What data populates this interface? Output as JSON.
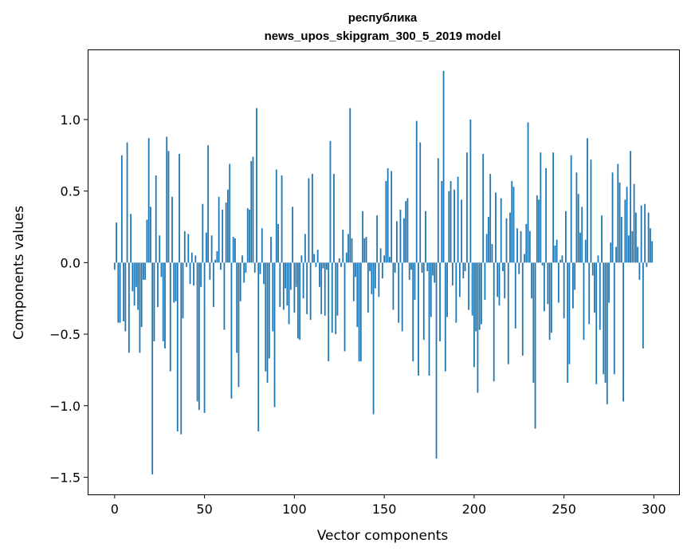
{
  "chart_data": {
    "type": "bar",
    "title_line1": "республика",
    "title_line2": "news_upos_skipgram_300_5_2019 model",
    "xlabel": "Vector components",
    "ylabel": "Components values",
    "xlim": [
      -15,
      314
    ],
    "ylim": [
      -1.62,
      1.49
    ],
    "xticks": [
      0,
      50,
      100,
      150,
      200,
      250,
      300
    ],
    "xtick_labels": [
      "0",
      "50",
      "100",
      "150",
      "200",
      "250",
      "300"
    ],
    "yticks": [
      1.0,
      0.5,
      0.0,
      -0.5,
      -1.0,
      -1.5
    ],
    "ytick_labels": [
      "1.0",
      "0.5",
      "0.0",
      "−0.5",
      "−1.0",
      "−1.5"
    ],
    "bar_color": "#1f77b4",
    "values": [
      -0.05,
      0.28,
      -0.42,
      -0.42,
      0.75,
      -0.41,
      -0.48,
      0.84,
      -0.63,
      0.34,
      -0.2,
      -0.3,
      -0.17,
      -0.33,
      -0.63,
      -0.45,
      -0.12,
      -0.12,
      0.3,
      0.87,
      0.39,
      -1.48,
      -0.55,
      0.61,
      -0.31,
      0.19,
      -0.1,
      -0.55,
      -0.6,
      0.88,
      0.78,
      -0.76,
      0.46,
      -0.28,
      -0.27,
      -1.18,
      0.76,
      -1.2,
      -0.39,
      0.22,
      -0.03,
      0.2,
      -0.15,
      0.07,
      -0.16,
      0.05,
      -0.97,
      -1.03,
      -0.17,
      0.41,
      -1.05,
      0.21,
      0.82,
      -0.12,
      0.19,
      -0.31,
      0.02,
      0.08,
      0.46,
      -0.05,
      0.37,
      -0.47,
      0.42,
      0.51,
      0.69,
      -0.95,
      0.18,
      0.17,
      -0.63,
      -0.87,
      -0.27,
      0.05,
      -0.14,
      -0.07,
      0.38,
      0.37,
      0.71,
      0.74,
      -0.07,
      1.08,
      -1.18,
      -0.08,
      0.24,
      -0.15,
      -0.76,
      -0.84,
      -0.67,
      0.18,
      -0.48,
      -1.01,
      0.65,
      0.27,
      -0.31,
      0.61,
      -0.33,
      -0.18,
      -0.3,
      -0.43,
      -0.19,
      0.39,
      -0.35,
      -0.17,
      -0.53,
      -0.54,
      0.05,
      -0.25,
      0.2,
      -0.36,
      0.59,
      -0.4,
      0.62,
      0.06,
      -0.03,
      0.09,
      -0.17,
      -0.36,
      -0.04,
      -0.37,
      -0.05,
      -0.69,
      0.85,
      -0.49,
      0.62,
      -0.5,
      -0.37,
      0.03,
      -0.03,
      0.23,
      -0.62,
      0.07,
      0.2,
      1.08,
      0.17,
      -0.27,
      -0.1,
      -0.45,
      -0.69,
      -0.69,
      0.36,
      0.17,
      0.18,
      -0.35,
      -0.06,
      -0.22,
      -1.06,
      -0.18,
      0.33,
      -0.24,
      0.1,
      -0.11,
      0.05,
      0.57,
      0.66,
      0.04,
      0.64,
      -0.33,
      -0.07,
      0.29,
      -0.42,
      0.37,
      -0.48,
      0.31,
      0.43,
      0.45,
      -0.12,
      -0.05,
      -0.69,
      -0.26,
      0.99,
      -0.79,
      0.84,
      -0.07,
      -0.54,
      0.36,
      -0.06,
      -0.79,
      -0.38,
      -0.09,
      -0.14,
      -1.37,
      0.73,
      -0.55,
      0.57,
      1.34,
      -0.76,
      -0.38,
      0.5,
      0.57,
      -0.16,
      0.51,
      -0.42,
      0.6,
      -0.24,
      0.44,
      -0.11,
      -0.06,
      0.77,
      -0.33,
      1.0,
      -0.37,
      -0.73,
      -0.48,
      -0.91,
      -0.47,
      -0.43,
      0.76,
      -0.26,
      0.2,
      0.32,
      0.62,
      0.13,
      -0.83,
      0.49,
      -0.24,
      -0.3,
      0.45,
      -0.06,
      -0.25,
      0.31,
      -0.71,
      0.35,
      0.57,
      0.53,
      -0.46,
      0.24,
      -0.08,
      0.22,
      -0.65,
      0.06,
      0.27,
      0.98,
      0.22,
      -0.25,
      -0.84,
      -1.16,
      0.47,
      0.44,
      0.77,
      -0.02,
      -0.34,
      0.66,
      -0.29,
      -0.54,
      -0.49,
      0.77,
      0.12,
      0.16,
      -0.28,
      0.02,
      0.05,
      -0.39,
      0.36,
      -0.84,
      -0.71,
      0.75,
      -0.32,
      -0.19,
      0.63,
      0.48,
      0.21,
      0.39,
      -0.54,
      0.16,
      0.87,
      -0.43,
      0.72,
      -0.09,
      -0.35,
      -0.85,
      0.05,
      -0.47,
      0.33,
      -0.78,
      -0.84,
      -0.99,
      -0.28,
      0.14,
      0.63,
      -0.78,
      0.11,
      0.69,
      0.56,
      0.32,
      -0.97,
      0.44,
      0.53,
      0.19,
      0.78,
      0.22,
      0.55,
      0.35,
      0.11,
      -0.12,
      0.4,
      -0.6,
      0.41,
      -0.03,
      0.35,
      0.24,
      0.15
    ]
  }
}
